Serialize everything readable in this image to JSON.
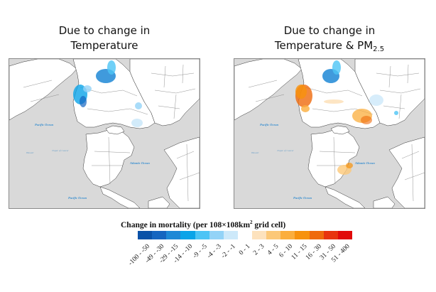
{
  "panels": [
    {
      "id": "left",
      "title_line1": "Due to change in",
      "title_line2": "Temperature",
      "title_subscript": ""
    },
    {
      "id": "right",
      "title_line1": "Due to change in",
      "title_line2": "Temperature & PM",
      "title_subscript": "2.5"
    }
  ],
  "map_labels": {
    "pacific_ocean_north": "Pacific Ocean",
    "pacific_ocean_south": "Pacific Ocean",
    "atlantic_ocean": "Atlantic Ocean",
    "hawaii": "Hawaii",
    "tropic_of_cancer": "Tropic of Cancer"
  },
  "legend": {
    "title_main": "Change in mortality (per 108×108km",
    "title_sup": "2",
    "title_end": " grid cell)",
    "bins": [
      {
        "label": "-100 - -50",
        "color": "#0a52a8"
      },
      {
        "label": "-49 - -30",
        "color": "#1565c0"
      },
      {
        "label": "-29 - -15",
        "color": "#1e88d6"
      },
      {
        "label": "-14 - -10",
        "color": "#0aa4e8"
      },
      {
        "label": "-9 - -5",
        "color": "#4cc4f5"
      },
      {
        "label": "-4 - -3",
        "color": "#93d3f7"
      },
      {
        "label": "-2 - -1",
        "color": "#cde9fa"
      },
      {
        "label": "0 - 1",
        "color": "#ffffff"
      },
      {
        "label": "2 - 3",
        "color": "#fde2bd"
      },
      {
        "label": "4 - 5",
        "color": "#fcc878"
      },
      {
        "label": "6 - 10",
        "color": "#fbae3c"
      },
      {
        "label": "11 - 15",
        "color": "#f7920c"
      },
      {
        "label": "16 - 30",
        "color": "#ef6a0c"
      },
      {
        "label": "31 - 50",
        "color": "#e8340e"
      },
      {
        "label": "51 - 400",
        "color": "#e10a0a"
      }
    ]
  },
  "colors": {
    "ocean": "#d9d9d9",
    "land": "#ffffff",
    "border": "#333333"
  }
}
